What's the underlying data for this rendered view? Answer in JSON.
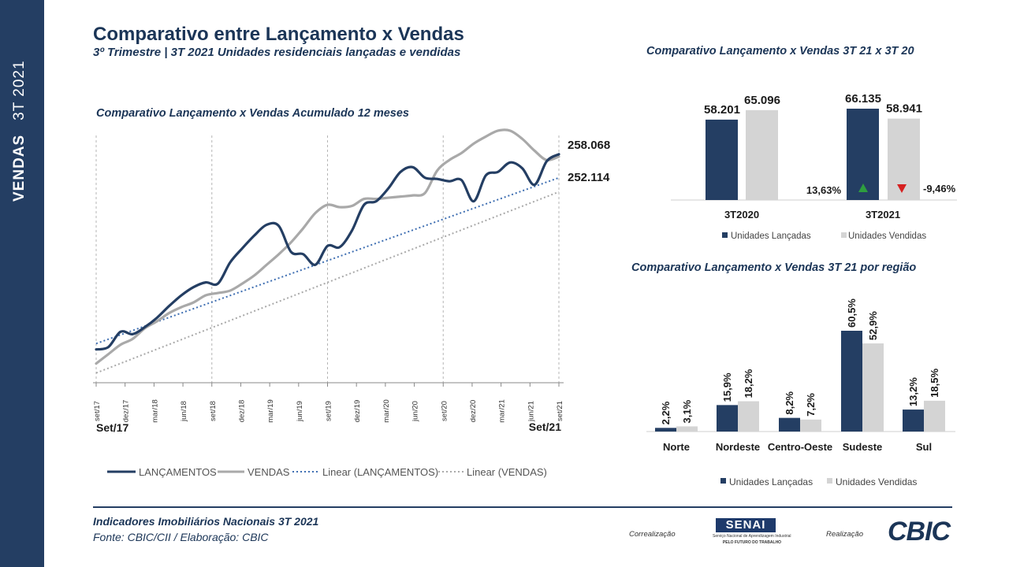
{
  "sidebar": {
    "label_bold": "VENDAS",
    "label_period": "3T 2021"
  },
  "header": {
    "title": "Comparativo entre Lançamento x Vendas",
    "subtitle": "3º Trimestre | 3T 2021  Unidades residenciais lançadas e vendidas"
  },
  "colors": {
    "navy": "#243e63",
    "gray": "#a9a9a9",
    "lightgray": "#d4d4d4",
    "green": "#2e9e3f",
    "red": "#d62020"
  },
  "chart_data": [
    {
      "type": "line",
      "title": "Comparativo Lançamento x Vendas Acumulado 12 meses",
      "x_tick_labels": [
        "set/17",
        "dez/17",
        "mar/18",
        "jun/18",
        "set/18",
        "dez/18",
        "mar/19",
        "jun/19",
        "set/19",
        "dez/19",
        "mar/20",
        "jun/20",
        "set/20",
        "dez/20",
        "mar/21",
        "jun/21",
        "set/21"
      ],
      "period_start_label": "Set/17",
      "period_end_label": "Set/21",
      "series": [
        {
          "name": "LANÇAMENTOS",
          "style": "solid",
          "color": "#243e63",
          "values": [
            70,
            74,
            100,
            96,
            108,
            124,
            144,
            162,
            176,
            184,
            182,
            218,
            242,
            264,
            282,
            280,
            236,
            232,
            214,
            246,
            244,
            272,
            316,
            322,
            344,
            372,
            380,
            362,
            360,
            356,
            358,
            322,
            366,
            372,
            388,
            378,
            350,
            390,
            402
          ]
        },
        {
          "name": "VENDAS",
          "style": "solid",
          "color": "#a9a9a9",
          "values": [
            46,
            62,
            78,
            88,
            106,
            118,
            132,
            142,
            150,
            162,
            166,
            170,
            182,
            196,
            214,
            232,
            252,
            276,
            302,
            316,
            312,
            314,
            326,
            326,
            328,
            330,
            332,
            336,
            374,
            392,
            404,
            420,
            432,
            442,
            442,
            428,
            408,
            392,
            398
          ]
        },
        {
          "name": "Linear (LANÇAMENTOS)",
          "style": "dotted",
          "color": "#3f6fb2",
          "values": [
            80,
            362
          ]
        },
        {
          "name": "Linear (VENDAS)",
          "style": "dotted",
          "color": "#a9a9a9",
          "values": [
            30,
            338
          ]
        }
      ],
      "end_labels": {
        "lancamentos": "258.068",
        "vendas": "252.114"
      },
      "ylim": [
        0,
        450
      ],
      "legend_position": "bottom"
    },
    {
      "type": "bar",
      "title": "Comparativo Lançamento x Vendas  3T 21 x 3T 20",
      "categories": [
        "3T2020",
        "3T2021"
      ],
      "series": [
        {
          "name": "Unidades Lançadas",
          "values": [
            58201,
            66135
          ],
          "labels": [
            "58.201",
            "66.135"
          ]
        },
        {
          "name": "Unidades Vendidas",
          "values": [
            65096,
            58941
          ],
          "labels": [
            "65.096",
            "58.941"
          ]
        }
      ],
      "changes": {
        "lancadas": "13,63%",
        "vendidas": "-9,46%"
      },
      "ylim": [
        0,
        70000
      ]
    },
    {
      "type": "bar",
      "title": "Comparativo Lançamento x Vendas  3T 21 por região",
      "categories": [
        "Norte",
        "Nordeste",
        "Centro-Oeste",
        "Sudeste",
        "Sul"
      ],
      "series": [
        {
          "name": "Unidades Lançadas",
          "values": [
            2.2,
            15.9,
            8.2,
            60.5,
            13.2
          ],
          "labels": [
            "2,2%",
            "15,9%",
            "8,2%",
            "60,5%",
            "13,2%"
          ]
        },
        {
          "name": "Unidades Vendidas",
          "values": [
            3.1,
            18.2,
            7.2,
            52.9,
            18.5
          ],
          "labels": [
            "3,1%",
            "18,2%",
            "7,2%",
            "52,9%",
            "18,5%"
          ]
        }
      ],
      "ylim": [
        0,
        65
      ]
    }
  ],
  "footer": {
    "line1": "Indicadores Imobiliários Nacionais 3T 2021",
    "line2": "Fonte: CBIC/CII / Elaboração: CBIC",
    "correalizacao": "Correalização",
    "realizacao": "Realização",
    "senai_name": "SENAI",
    "senai_sub1": "Serviço Nacional de Aprendizagem Industrial",
    "senai_sub2": "PELO FUTURO DO TRABALHO",
    "cbic_logo": "CBIC"
  }
}
